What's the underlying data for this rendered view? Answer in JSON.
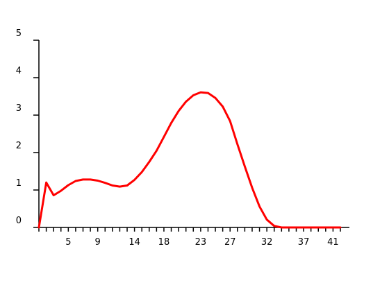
{
  "chart_data": {
    "type": "line",
    "title": "",
    "xlabel": "",
    "ylabel": "",
    "xlim": [
      1,
      42
    ],
    "ylim": [
      0,
      5
    ],
    "grid": false,
    "legend": "none",
    "x_ticks_labeled": [
      5,
      9,
      14,
      18,
      23,
      27,
      32,
      37,
      41
    ],
    "y_ticks_labeled": [
      0,
      1,
      2,
      3,
      4,
      5
    ],
    "series": [
      {
        "color": "#ff0000",
        "x": [
          1,
          2,
          3,
          4,
          5,
          6,
          7,
          8,
          9,
          10,
          11,
          12,
          13,
          14,
          15,
          16,
          17,
          18,
          19,
          20,
          21,
          22,
          23,
          24,
          25,
          26,
          27,
          28,
          29,
          30,
          31,
          32,
          33,
          34,
          35,
          36,
          37,
          38,
          39,
          40,
          41,
          42
        ],
        "y": [
          0.0,
          1.2,
          0.86,
          0.98,
          1.13,
          1.24,
          1.28,
          1.28,
          1.25,
          1.19,
          1.12,
          1.09,
          1.12,
          1.27,
          1.48,
          1.75,
          2.05,
          2.42,
          2.79,
          3.11,
          3.36,
          3.53,
          3.61,
          3.59,
          3.46,
          3.23,
          2.84,
          2.22,
          1.63,
          1.06,
          0.56,
          0.21,
          0.04,
          0.0,
          0.0,
          0.0,
          0.0,
          0.0,
          0.0,
          0.0,
          0.0,
          0.0
        ]
      }
    ]
  }
}
